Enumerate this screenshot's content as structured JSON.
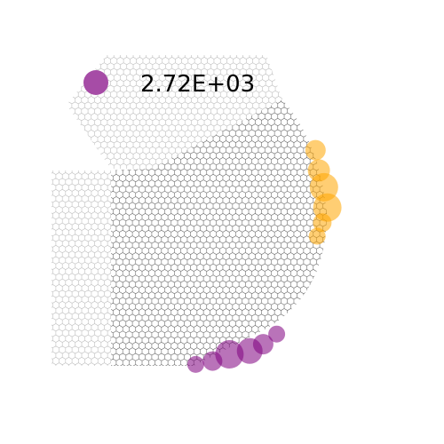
{
  "chart_data": {
    "type": "scatter",
    "title": "",
    "xlabel": "",
    "ylabel": "",
    "grid": false,
    "legend": {
      "placement": "top-left",
      "entries": [
        {
          "label": "2.72E+03",
          "color": "#a64ca6"
        }
      ]
    },
    "hexbin": {
      "outline_color": "#555555",
      "faded_outline_color": "#b8b8b8"
    },
    "series": [
      {
        "color": "#ffa500",
        "points": [
          {
            "x": 0.935,
            "y": 0.445,
            "size": 0.55
          },
          {
            "x": 0.945,
            "y": 0.505,
            "size": 0.65
          },
          {
            "x": 0.96,
            "y": 0.555,
            "size": 1.0
          },
          {
            "x": 0.97,
            "y": 0.615,
            "size": 1.0
          },
          {
            "x": 0.955,
            "y": 0.66,
            "size": 0.45
          },
          {
            "x": 0.94,
            "y": 0.7,
            "size": 0.35
          }
        ]
      },
      {
        "color": "#800080",
        "points": [
          {
            "x": 0.58,
            "y": 1.08,
            "size": 0.35
          },
          {
            "x": 0.63,
            "y": 1.07,
            "size": 0.5
          },
          {
            "x": 0.68,
            "y": 1.05,
            "size": 1.0
          },
          {
            "x": 0.74,
            "y": 1.04,
            "size": 0.85
          },
          {
            "x": 0.78,
            "y": 1.02,
            "size": 0.55
          },
          {
            "x": 0.82,
            "y": 0.99,
            "size": 0.35
          }
        ]
      }
    ]
  }
}
